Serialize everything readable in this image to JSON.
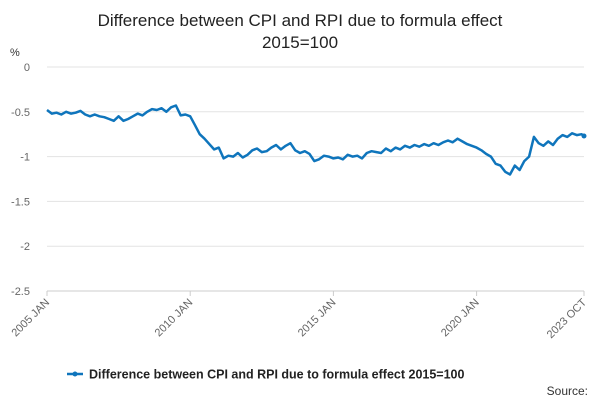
{
  "chart_data": {
    "type": "line",
    "title": "Difference between CPI and RPI due to formula effect",
    "subtitle": "2015=100",
    "ylabel": "%",
    "xlabel": "",
    "ylim": [
      -2.5,
      0
    ],
    "yticks": [
      "0",
      "-0.5",
      "-1",
      "-1.5",
      "-2",
      "-2.5"
    ],
    "xticks": [
      "2005 JAN",
      "2010 JAN",
      "2015 JAN",
      "2020 JAN",
      "2023 OCT"
    ],
    "grid": "horizontal",
    "legend_position": "bottom",
    "series": [
      {
        "name": "Difference between CPI and RPI due to formula effect 2015=100",
        "color": "#0f75bc",
        "points": [
          [
            "2005-01",
            -0.48
          ],
          [
            "2005-03",
            -0.52
          ],
          [
            "2005-05",
            -0.51
          ],
          [
            "2005-07",
            -0.53
          ],
          [
            "2005-09",
            -0.5
          ],
          [
            "2005-11",
            -0.52
          ],
          [
            "2006-01",
            -0.51
          ],
          [
            "2006-03",
            -0.49
          ],
          [
            "2006-05",
            -0.53
          ],
          [
            "2006-07",
            -0.55
          ],
          [
            "2006-09",
            -0.53
          ],
          [
            "2006-11",
            -0.55
          ],
          [
            "2007-01",
            -0.56
          ],
          [
            "2007-03",
            -0.58
          ],
          [
            "2007-05",
            -0.6
          ],
          [
            "2007-07",
            -0.55
          ],
          [
            "2007-09",
            -0.6
          ],
          [
            "2007-11",
            -0.58
          ],
          [
            "2008-01",
            -0.55
          ],
          [
            "2008-03",
            -0.52
          ],
          [
            "2008-05",
            -0.54
          ],
          [
            "2008-07",
            -0.5
          ],
          [
            "2008-09",
            -0.47
          ],
          [
            "2008-11",
            -0.48
          ],
          [
            "2009-01",
            -0.46
          ],
          [
            "2009-03",
            -0.5
          ],
          [
            "2009-05",
            -0.45
          ],
          [
            "2009-07",
            -0.43
          ],
          [
            "2009-09",
            -0.54
          ],
          [
            "2009-11",
            -0.53
          ],
          [
            "2010-01",
            -0.55
          ],
          [
            "2010-03",
            -0.65
          ],
          [
            "2010-05",
            -0.75
          ],
          [
            "2010-07",
            -0.8
          ],
          [
            "2010-09",
            -0.86
          ],
          [
            "2010-11",
            -0.92
          ],
          [
            "2011-01",
            -0.9
          ],
          [
            "2011-03",
            -1.02
          ],
          [
            "2011-05",
            -0.99
          ],
          [
            "2011-07",
            -1.0
          ],
          [
            "2011-09",
            -0.96
          ],
          [
            "2011-11",
            -1.01
          ],
          [
            "2012-01",
            -0.98
          ],
          [
            "2012-03",
            -0.93
          ],
          [
            "2012-05",
            -0.91
          ],
          [
            "2012-07",
            -0.95
          ],
          [
            "2012-09",
            -0.94
          ],
          [
            "2012-11",
            -0.9
          ],
          [
            "2013-01",
            -0.87
          ],
          [
            "2013-03",
            -0.92
          ],
          [
            "2013-05",
            -0.88
          ],
          [
            "2013-07",
            -0.85
          ],
          [
            "2013-09",
            -0.93
          ],
          [
            "2013-11",
            -0.96
          ],
          [
            "2014-01",
            -0.94
          ],
          [
            "2014-03",
            -0.97
          ],
          [
            "2014-05",
            -1.05
          ],
          [
            "2014-07",
            -1.03
          ],
          [
            "2014-09",
            -0.99
          ],
          [
            "2014-11",
            -1.0
          ],
          [
            "2015-01",
            -1.02
          ],
          [
            "2015-03",
            -1.01
          ],
          [
            "2015-05",
            -1.03
          ],
          [
            "2015-07",
            -0.98
          ],
          [
            "2015-09",
            -1.0
          ],
          [
            "2015-11",
            -0.99
          ],
          [
            "2016-01",
            -1.02
          ],
          [
            "2016-03",
            -0.96
          ],
          [
            "2016-05",
            -0.94
          ],
          [
            "2016-07",
            -0.95
          ],
          [
            "2016-09",
            -0.96
          ],
          [
            "2016-11",
            -0.91
          ],
          [
            "2017-01",
            -0.94
          ],
          [
            "2017-03",
            -0.9
          ],
          [
            "2017-05",
            -0.92
          ],
          [
            "2017-07",
            -0.88
          ],
          [
            "2017-09",
            -0.9
          ],
          [
            "2017-11",
            -0.87
          ],
          [
            "2018-01",
            -0.89
          ],
          [
            "2018-03",
            -0.86
          ],
          [
            "2018-05",
            -0.88
          ],
          [
            "2018-07",
            -0.85
          ],
          [
            "2018-09",
            -0.87
          ],
          [
            "2018-11",
            -0.84
          ],
          [
            "2019-01",
            -0.82
          ],
          [
            "2019-03",
            -0.84
          ],
          [
            "2019-05",
            -0.8
          ],
          [
            "2019-07",
            -0.83
          ],
          [
            "2019-09",
            -0.86
          ],
          [
            "2019-11",
            -0.88
          ],
          [
            "2020-01",
            -0.9
          ],
          [
            "2020-03",
            -0.93
          ],
          [
            "2020-05",
            -0.97
          ],
          [
            "2020-07",
            -1.0
          ],
          [
            "2020-09",
            -1.08
          ],
          [
            "2020-11",
            -1.1
          ],
          [
            "2021-01",
            -1.17
          ],
          [
            "2021-03",
            -1.2
          ],
          [
            "2021-05",
            -1.1
          ],
          [
            "2021-07",
            -1.15
          ],
          [
            "2021-09",
            -1.05
          ],
          [
            "2021-11",
            -1.0
          ],
          [
            "2022-01",
            -0.78
          ],
          [
            "2022-03",
            -0.85
          ],
          [
            "2022-05",
            -0.88
          ],
          [
            "2022-07",
            -0.83
          ],
          [
            "2022-09",
            -0.87
          ],
          [
            "2022-11",
            -0.8
          ],
          [
            "2023-01",
            -0.76
          ],
          [
            "2023-03",
            -0.78
          ],
          [
            "2023-05",
            -0.74
          ],
          [
            "2023-07",
            -0.76
          ],
          [
            "2023-09",
            -0.75
          ],
          [
            "2023-10",
            -0.77
          ]
        ]
      }
    ]
  },
  "footer": {
    "source_label": "Source:"
  }
}
